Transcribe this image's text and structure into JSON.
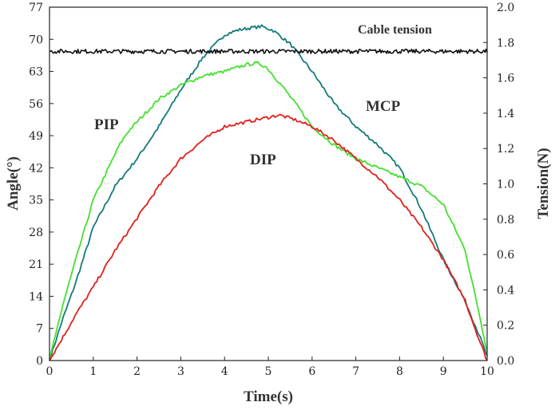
{
  "chart_data": {
    "type": "line",
    "xlabel": "Time(s)",
    "ylabel": "Angle(°)",
    "y2label": "Tension(N)",
    "xlim": [
      0,
      10
    ],
    "ylim": [
      0,
      77
    ],
    "y2lim": [
      0,
      2.0
    ],
    "xticks": [
      "0",
      "1",
      "2",
      "3",
      "4",
      "5",
      "6",
      "7",
      "8",
      "9",
      "10"
    ],
    "yticks": [
      "0",
      "7",
      "14",
      "21",
      "28",
      "35",
      "42",
      "49",
      "56",
      "63",
      "70",
      "77"
    ],
    "y2ticks": [
      "0.0",
      "0.2",
      "0.4",
      "0.6",
      "0.8",
      "1.0",
      "1.2",
      "1.4",
      "1.6",
      "1.8",
      "2.0"
    ],
    "grid": false,
    "annotations": [
      "Cable tension",
      "PIP",
      "MCP",
      "DIP"
    ],
    "series": [
      {
        "name": "MCP",
        "axis": "left",
        "color": "#137a7a",
        "x": [
          0,
          0.3,
          0.6,
          1.0,
          1.5,
          2.0,
          2.5,
          3.0,
          3.5,
          4.0,
          4.3,
          4.6,
          4.85,
          5.1,
          5.5,
          6.0,
          6.5,
          7.0,
          7.5,
          8.0,
          8.5,
          9.0,
          9.5,
          9.8,
          10.0
        ],
        "y": [
          0,
          9,
          17,
          29,
          38,
          44,
          51,
          59,
          66,
          71,
          72,
          72.5,
          72.8,
          72,
          69,
          63,
          56,
          51,
          47,
          42,
          33,
          22,
          13,
          6,
          1
        ]
      },
      {
        "name": "PIP",
        "axis": "left",
        "color": "#44e02e",
        "x": [
          0,
          0.3,
          0.6,
          1.0,
          1.3,
          1.6,
          1.8,
          2.0,
          2.5,
          3.0,
          3.5,
          4.0,
          4.5,
          4.75,
          4.95,
          5.3,
          5.7,
          6.0,
          6.5,
          7.0,
          7.5,
          8.0,
          8.5,
          9.0,
          9.5,
          9.8,
          10.0
        ],
        "y": [
          0,
          12,
          22,
          35,
          41,
          47,
          50,
          52,
          57,
          60,
          62,
          63,
          64.5,
          64.8,
          64,
          60,
          55,
          51,
          47,
          44,
          42,
          40,
          38,
          34,
          24,
          11,
          2
        ]
      },
      {
        "name": "DIP",
        "axis": "left",
        "color": "#e0201c",
        "x": [
          0,
          0.3,
          0.6,
          1.0,
          1.5,
          2.0,
          2.5,
          3.0,
          3.5,
          4.0,
          4.5,
          5.0,
          5.25,
          5.6,
          6.0,
          6.5,
          7.0,
          7.5,
          8.0,
          8.5,
          9.0,
          9.5,
          9.8,
          10.0
        ],
        "y": [
          0,
          5,
          10,
          16,
          24,
          31,
          38,
          44,
          48,
          51,
          52,
          53,
          53.5,
          52.5,
          51,
          48,
          44,
          40,
          35,
          29,
          22,
          13,
          5,
          0
        ]
      },
      {
        "name": "Cable tension",
        "axis": "right",
        "color": "#111111",
        "x": [
          0,
          10
        ],
        "y": [
          1.75,
          1.75
        ],
        "noise_amplitude": 0.012
      }
    ]
  }
}
